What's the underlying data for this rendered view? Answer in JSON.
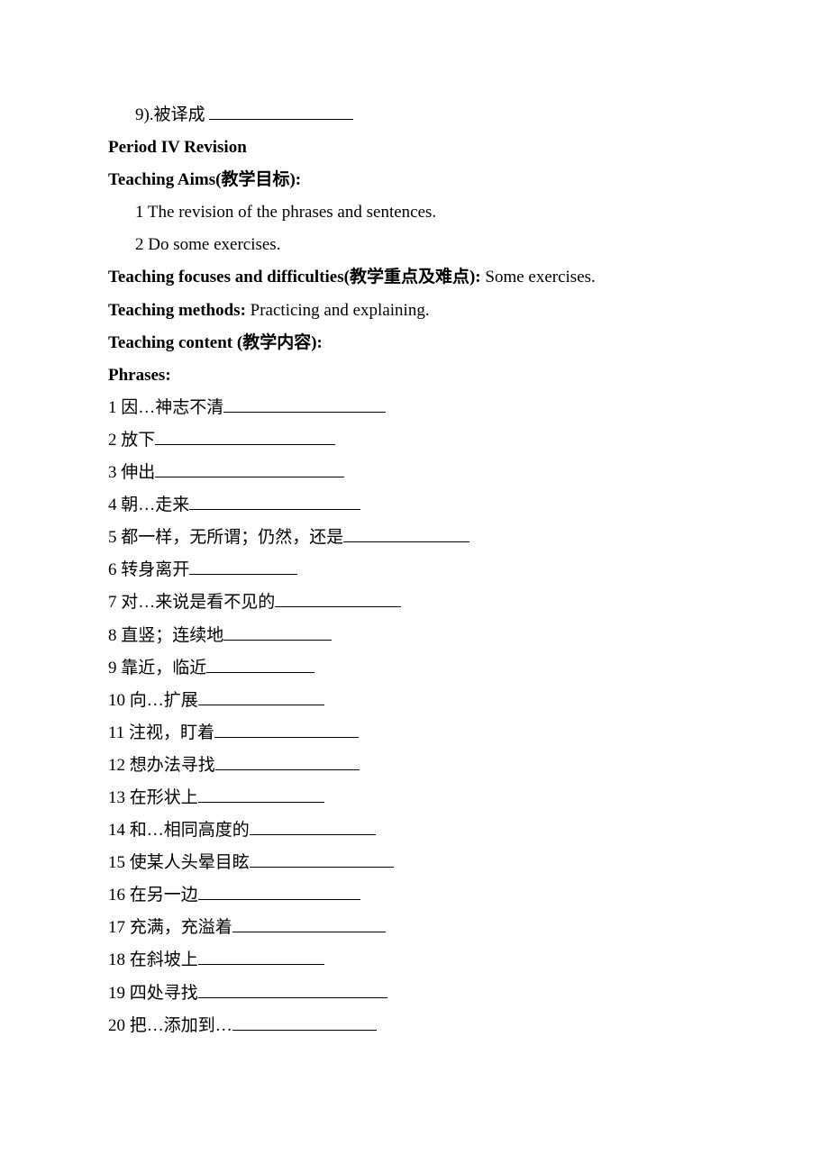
{
  "top_item_indent": "9).被译成",
  "period_title": "Period IV    Revision",
  "aims_heading": "Teaching Aims(教学目标):",
  "aim1": "1 The revision of the phrases and sentences.",
  "aim2": "2 Do some exercises.",
  "focuses_label": "Teaching focuses and difficulties(教学重点及难点): ",
  "focuses_value": "Some exercises.",
  "methods_label": "Teaching methods: ",
  "methods_value": "Practicing and explaining.",
  "content_heading": "Teaching content (教学内容):",
  "phrases_heading": "Phrases:",
  "phrases": {
    "p1": "1  因…神志不清",
    "p2": "2  放下",
    "p3": "3  伸出",
    "p4": "4  朝…走来",
    "p5": "5  都一样，无所谓；仍然，还是",
    "p6": "6  转身离开",
    "p7": "7  对…来说是看不见的",
    "p8": "8  直竖；连续地",
    "p9": "9  靠近，临近",
    "p10": "10  向…扩展",
    "p11": "11  注视，盯着",
    "p12": "12  想办法寻找",
    "p13": "13  在形状上",
    "p14": "14  和…相同高度的",
    "p15": "15  使某人头晕目眩",
    "p16": "16  在另一边",
    "p17": "17  充满，充溢着",
    "p18": "18  在斜坡上",
    "p19": "19  四处寻找",
    "p20": "20  把…添加到…"
  }
}
